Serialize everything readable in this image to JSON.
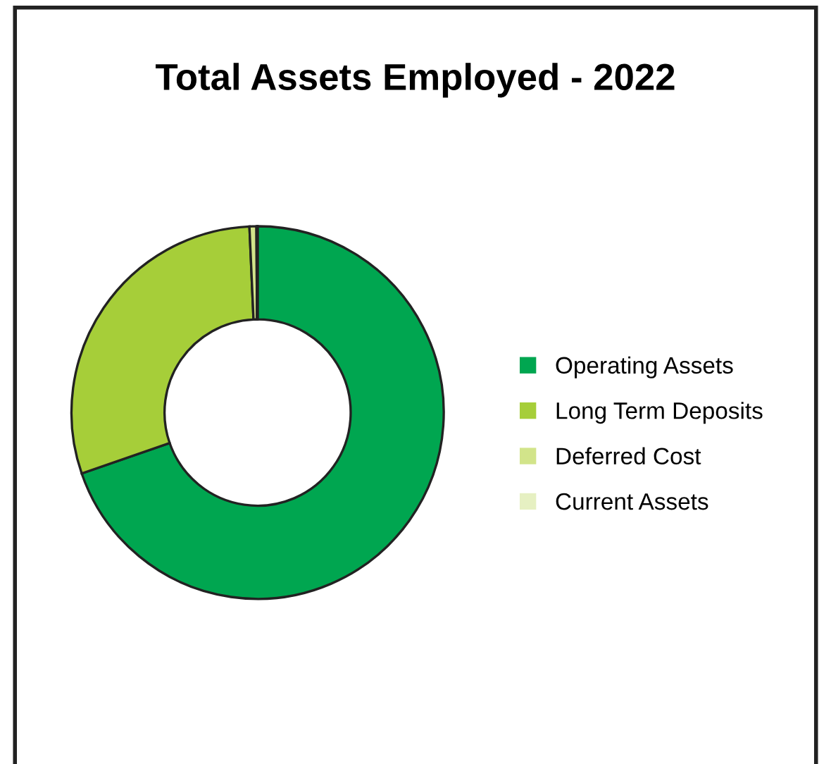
{
  "chart_data": {
    "type": "donut",
    "title": "Total Assets Employed - 2022",
    "categories": [
      "Operating Assets",
      "Long Term Deposits",
      "Deferred Cost",
      "Current Assets"
    ],
    "values": [
      69.7,
      29.6,
      0.6,
      0.1
    ],
    "colors": [
      "#00a650",
      "#a6ce39",
      "#d2e48a",
      "#e6f0c2"
    ],
    "legend": "right"
  }
}
